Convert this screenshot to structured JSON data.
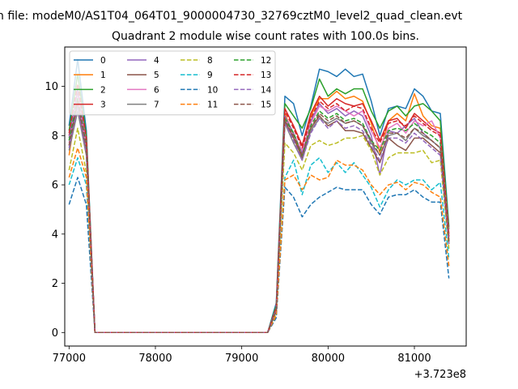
{
  "chart_data": {
    "type": "line",
    "suptitle": "n file: modeM0/AS1T04_064T01_9000004730_32769cztM0_level2_quad_clean.evt",
    "title": "Quadrant 2 module wise count rates with 100.0s bins.",
    "xlabel": "",
    "ylabel": "",
    "x_offset_label": "+3.723e8",
    "xlim": [
      76950,
      81600
    ],
    "ylim": [
      -0.55,
      11.6
    ],
    "x_ticks": [
      77000,
      78000,
      79000,
      80000,
      81000
    ],
    "y_ticks": [
      0,
      2,
      4,
      6,
      8,
      10
    ],
    "grid": false,
    "legend": {
      "placement": "top-left",
      "columns": 4
    },
    "x": [
      77000,
      77100,
      77200,
      77300,
      77400,
      77500,
      77600,
      77700,
      77800,
      77900,
      78000,
      78100,
      78200,
      78300,
      78400,
      78500,
      78600,
      78700,
      78800,
      78900,
      79000,
      79100,
      79200,
      79300,
      79400,
      79500,
      79600,
      79700,
      79800,
      79900,
      80000,
      80100,
      80200,
      80300,
      80400,
      80500,
      80600,
      80700,
      80800,
      80900,
      81000,
      81100,
      81200,
      81300,
      81400
    ],
    "series": [
      {
        "name": "0",
        "color": "#1f77b4",
        "dash": "solid",
        "values": [
          8.4,
          11.1,
          8.2,
          0,
          0,
          0,
          0,
          0,
          0,
          0,
          0,
          0,
          0,
          0,
          0,
          0,
          0,
          0,
          0,
          0,
          0,
          0,
          0,
          0,
          1.2,
          9.6,
          9.3,
          8.0,
          9.2,
          10.7,
          10.6,
          10.4,
          10.7,
          10.4,
          10.5,
          9.4,
          8.0,
          9.1,
          9.2,
          9.1,
          9.9,
          9.6,
          9.0,
          8.9,
          4.3
        ]
      },
      {
        "name": "1",
        "color": "#ff7f0e",
        "dash": "solid",
        "values": [
          7.2,
          9.5,
          7.5,
          0,
          0,
          0,
          0,
          0,
          0,
          0,
          0,
          0,
          0,
          0,
          0,
          0,
          0,
          0,
          0,
          0,
          0,
          0,
          0,
          0,
          1.0,
          8.9,
          8.0,
          7.1,
          8.8,
          9.5,
          9.5,
          9.8,
          9.5,
          9.6,
          9.4,
          8.5,
          7.3,
          8.6,
          8.9,
          8.6,
          9.7,
          8.8,
          8.4,
          8.3,
          3.8
        ]
      },
      {
        "name": "2",
        "color": "#2ca02c",
        "dash": "solid",
        "values": [
          8.2,
          10.5,
          8.0,
          0,
          0,
          0,
          0,
          0,
          0,
          0,
          0,
          0,
          0,
          0,
          0,
          0,
          0,
          0,
          0,
          0,
          0,
          0,
          0,
          0,
          1.1,
          9.3,
          8.8,
          8.3,
          9.1,
          10.3,
          9.6,
          9.9,
          9.7,
          9.9,
          9.9,
          9.0,
          8.3,
          9.0,
          9.2,
          8.8,
          9.2,
          9.3,
          9.0,
          8.6,
          4.2
        ]
      },
      {
        "name": "3",
        "color": "#d62728",
        "dash": "solid",
        "values": [
          8.0,
          9.8,
          7.8,
          0,
          0,
          0,
          0,
          0,
          0,
          0,
          0,
          0,
          0,
          0,
          0,
          0,
          0,
          0,
          0,
          0,
          0,
          0,
          0,
          0,
          1.0,
          9.1,
          8.4,
          7.6,
          8.9,
          9.6,
          9.2,
          9.5,
          9.3,
          9.2,
          9.3,
          8.6,
          7.8,
          8.6,
          8.7,
          8.3,
          8.9,
          8.6,
          8.3,
          8.1,
          4.0
        ]
      },
      {
        "name": "4",
        "color": "#9467bd",
        "dash": "solid",
        "values": [
          7.9,
          9.9,
          7.7,
          0,
          0,
          0,
          0,
          0,
          0,
          0,
          0,
          0,
          0,
          0,
          0,
          0,
          0,
          0,
          0,
          0,
          0,
          0,
          0,
          0,
          1.0,
          8.8,
          8.1,
          7.3,
          8.6,
          9.3,
          8.9,
          9.1,
          8.8,
          9.0,
          8.8,
          8.0,
          6.4,
          8.2,
          8.1,
          8.4,
          8.7,
          8.1,
          7.8,
          7.5,
          3.9
        ]
      },
      {
        "name": "5",
        "color": "#8c564b",
        "dash": "solid",
        "values": [
          7.6,
          9.3,
          7.4,
          0,
          0,
          0,
          0,
          0,
          0,
          0,
          0,
          0,
          0,
          0,
          0,
          0,
          0,
          0,
          0,
          0,
          0,
          0,
          0,
          0,
          0.9,
          8.6,
          7.9,
          7.1,
          8.3,
          8.8,
          8.4,
          8.6,
          8.2,
          8.2,
          8.1,
          7.5,
          6.9,
          7.9,
          7.6,
          7.4,
          7.9,
          7.9,
          7.6,
          7.3,
          3.6
        ]
      },
      {
        "name": "6",
        "color": "#e377c2",
        "dash": "solid",
        "values": [
          7.7,
          9.6,
          7.6,
          0,
          0,
          0,
          0,
          0,
          0,
          0,
          0,
          0,
          0,
          0,
          0,
          0,
          0,
          0,
          0,
          0,
          0,
          0,
          0,
          0,
          0.9,
          8.7,
          8.0,
          7.4,
          8.5,
          9.2,
          9.0,
          9.2,
          9.0,
          8.8,
          9.0,
          8.2,
          7.5,
          8.3,
          8.5,
          8.1,
          8.6,
          8.4,
          8.6,
          7.9,
          3.9
        ]
      },
      {
        "name": "7",
        "color": "#7f7f7f",
        "dash": "solid",
        "values": [
          7.4,
          9.0,
          7.2,
          0,
          0,
          0,
          0,
          0,
          0,
          0,
          0,
          0,
          0,
          0,
          0,
          0,
          0,
          0,
          0,
          0,
          0,
          0,
          0,
          0,
          0.9,
          8.5,
          7.7,
          7.0,
          8.2,
          8.7,
          8.5,
          8.7,
          8.5,
          8.6,
          8.4,
          7.7,
          7.2,
          8.0,
          8.1,
          7.8,
          8.3,
          8.0,
          7.8,
          7.5,
          3.7
        ]
      },
      {
        "name": "8",
        "color": "#bcbd22",
        "dash": "dashed",
        "values": [
          6.6,
          8.3,
          6.5,
          0,
          0,
          0,
          0,
          0,
          0,
          0,
          0,
          0,
          0,
          0,
          0,
          0,
          0,
          0,
          0,
          0,
          0,
          0,
          0,
          0,
          0.8,
          7.7,
          7.3,
          6.6,
          7.6,
          7.8,
          7.6,
          7.7,
          7.9,
          7.9,
          8.0,
          7.4,
          6.4,
          7.1,
          7.3,
          7.3,
          7.3,
          7.4,
          6.9,
          7.0,
          3.4
        ]
      },
      {
        "name": "9",
        "color": "#17becf",
        "dash": "dashed",
        "values": [
          6.0,
          7.1,
          6.0,
          0,
          0,
          0,
          0,
          0,
          0,
          0,
          0,
          0,
          0,
          0,
          0,
          0,
          0,
          0,
          0,
          0,
          0,
          0,
          0,
          0,
          0.7,
          6.3,
          7.0,
          5.6,
          6.8,
          7.1,
          6.5,
          6.9,
          6.5,
          6.9,
          6.4,
          5.9,
          5.1,
          5.8,
          6.2,
          6.0,
          6.2,
          6.2,
          5.8,
          6.1,
          3.0
        ]
      },
      {
        "name": "10",
        "color": "#1f77b4",
        "dash": "dashed",
        "values": [
          5.2,
          6.3,
          5.2,
          0,
          0,
          0,
          0,
          0,
          0,
          0,
          0,
          0,
          0,
          0,
          0,
          0,
          0,
          0,
          0,
          0,
          0,
          0,
          0,
          0,
          0.6,
          5.9,
          5.5,
          4.7,
          5.2,
          5.5,
          5.7,
          5.9,
          5.8,
          5.8,
          5.8,
          5.2,
          4.8,
          5.5,
          5.6,
          5.6,
          5.8,
          5.5,
          5.3,
          5.3,
          2.2
        ]
      },
      {
        "name": "11",
        "color": "#ff7f0e",
        "dash": "dashed",
        "values": [
          6.3,
          7.5,
          6.3,
          0,
          0,
          0,
          0,
          0,
          0,
          0,
          0,
          0,
          0,
          0,
          0,
          0,
          0,
          0,
          0,
          0,
          0,
          0,
          0,
          0,
          0.7,
          6.2,
          6.4,
          5.8,
          6.4,
          6.2,
          6.3,
          7.0,
          6.8,
          6.8,
          6.6,
          6.0,
          5.6,
          6.0,
          6.1,
          5.8,
          6.1,
          6.0,
          5.7,
          5.5,
          2.7
        ]
      },
      {
        "name": "12",
        "color": "#2ca02c",
        "dash": "dashed",
        "values": [
          7.8,
          9.5,
          7.6,
          0,
          0,
          0,
          0,
          0,
          0,
          0,
          0,
          0,
          0,
          0,
          0,
          0,
          0,
          0,
          0,
          0,
          0,
          0,
          0,
          0,
          0.9,
          8.7,
          8.1,
          7.2,
          8.4,
          9.0,
          8.7,
          8.9,
          8.6,
          8.7,
          8.5,
          7.8,
          7.4,
          8.2,
          8.3,
          8.2,
          8.5,
          8.2,
          8.0,
          7.7,
          3.7
        ]
      },
      {
        "name": "13",
        "color": "#d62728",
        "dash": "dashed",
        "values": [
          8.1,
          10.1,
          7.9,
          0,
          0,
          0,
          0,
          0,
          0,
          0,
          0,
          0,
          0,
          0,
          0,
          0,
          0,
          0,
          0,
          0,
          0,
          0,
          0,
          0,
          1.0,
          9.0,
          8.3,
          7.5,
          8.7,
          9.4,
          9.1,
          9.3,
          9.0,
          9.2,
          9.1,
          8.3,
          7.7,
          8.5,
          8.6,
          8.4,
          8.8,
          8.5,
          8.2,
          8.0,
          3.9
        ]
      },
      {
        "name": "14",
        "color": "#9467bd",
        "dash": "dashed",
        "values": [
          7.5,
          9.2,
          7.3,
          0,
          0,
          0,
          0,
          0,
          0,
          0,
          0,
          0,
          0,
          0,
          0,
          0,
          0,
          0,
          0,
          0,
          0,
          0,
          0,
          0,
          0.9,
          8.5,
          7.8,
          7.0,
          8.1,
          8.7,
          8.3,
          8.6,
          8.3,
          8.4,
          8.2,
          7.6,
          7.0,
          7.9,
          7.9,
          7.7,
          8.1,
          7.8,
          7.5,
          7.2,
          3.6
        ]
      },
      {
        "name": "15",
        "color": "#8c564b",
        "dash": "dashed",
        "values": [
          7.6,
          9.4,
          7.5,
          0,
          0,
          0,
          0,
          0,
          0,
          0,
          0,
          0,
          0,
          0,
          0,
          0,
          0,
          0,
          0,
          0,
          0,
          0,
          0,
          0,
          0.9,
          8.6,
          8.0,
          7.2,
          8.3,
          8.9,
          8.6,
          8.8,
          8.5,
          8.6,
          8.4,
          7.8,
          7.2,
          8.1,
          8.1,
          7.9,
          8.3,
          8.1,
          7.8,
          7.5,
          3.7
        ]
      }
    ]
  }
}
